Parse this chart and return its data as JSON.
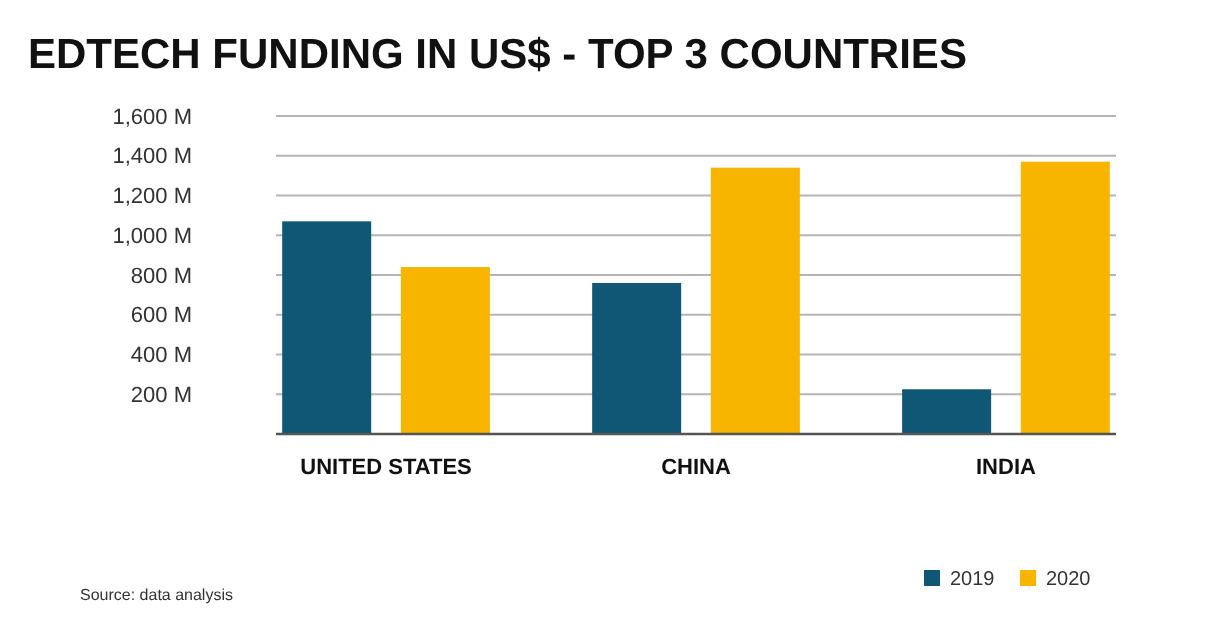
{
  "chart_data": {
    "type": "bar",
    "title": "EDTECH FUNDING IN US$ - TOP 3 COUNTRIES",
    "categories": [
      "UNITED STATES",
      "CHINA",
      "INDIA"
    ],
    "series": [
      {
        "name": "2019",
        "color": "#0f5775",
        "values": [
          1070,
          760,
          225
        ]
      },
      {
        "name": "2020",
        "color": "#f7b500",
        "values": [
          840,
          1340,
          1370
        ]
      }
    ],
    "ylim": [
      0,
      1600
    ],
    "yticks": [
      {
        "value": 200,
        "label": "200 M"
      },
      {
        "value": 400,
        "label": "400 M"
      },
      {
        "value": 600,
        "label": "600 M"
      },
      {
        "value": 800,
        "label": "800 M"
      },
      {
        "value": 1000,
        "label": "1,000 M"
      },
      {
        "value": 1200,
        "label": "1,200 M"
      },
      {
        "value": 1400,
        "label": "1,400 M"
      },
      {
        "value": 1600,
        "label": "1,600 M"
      }
    ],
    "grid": "y",
    "legend": "bottom right",
    "annotations": [
      "Source: data analysis"
    ]
  }
}
